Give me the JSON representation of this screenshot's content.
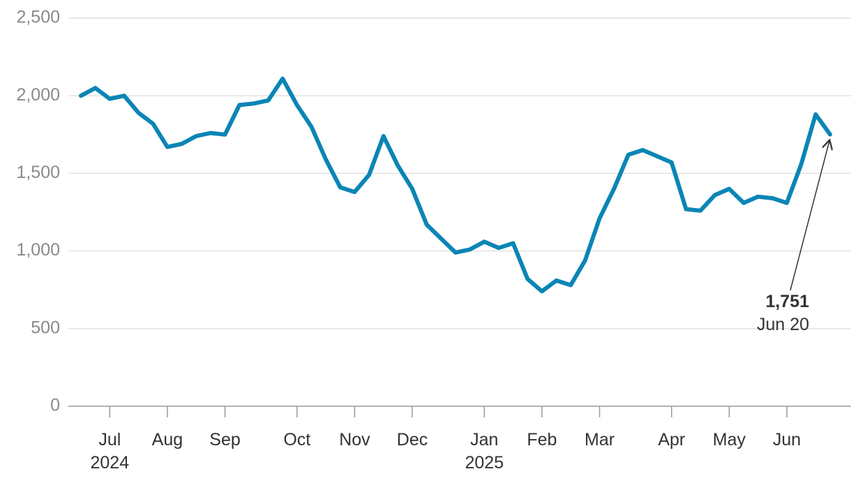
{
  "chart_data": {
    "type": "line",
    "categories": [
      null,
      null,
      "Jul\n2024",
      null,
      null,
      null,
      "Aug",
      null,
      null,
      null,
      "Sep",
      null,
      null,
      null,
      null,
      "Oct",
      null,
      null,
      null,
      "Nov",
      null,
      null,
      null,
      "Dec",
      null,
      null,
      null,
      null,
      "Jan\n2025",
      null,
      null,
      null,
      "Feb",
      null,
      null,
      null,
      "Mar",
      null,
      null,
      null,
      null,
      "Apr",
      null,
      null,
      null,
      "May",
      null,
      null,
      null,
      "Jun",
      null,
      null,
      null
    ],
    "series": [
      {
        "color": "#0b85b5",
        "values": [
          2000,
          2050,
          1980,
          2000,
          1890,
          1820,
          1670,
          1690,
          1740,
          1760,
          1750,
          1940,
          1950,
          1970,
          2110,
          1940,
          1800,
          1590,
          1410,
          1380,
          1490,
          1740,
          1550,
          1400,
          1170,
          1080,
          990,
          1010,
          1060,
          1020,
          1050,
          820,
          740,
          810,
          780,
          940,
          1210,
          1400,
          1620,
          1650,
          1610,
          1570,
          1270,
          1260,
          1360,
          1400,
          1310,
          1350,
          1340,
          1310,
          1560,
          1880,
          1751
        ]
      }
    ],
    "ylim": [
      0,
      2500
    ],
    "yticks": [
      0,
      500,
      {
        "value": 1000,
        "label": "1,000"
      },
      {
        "value": 1500,
        "label": "1,500"
      },
      {
        "value": 2000,
        "label": "2,000"
      },
      {
        "value": 2500,
        "label": "2,500"
      }
    ],
    "grid": true,
    "annotation": {
      "value_label": "1,751",
      "date": "Jun 20"
    }
  }
}
